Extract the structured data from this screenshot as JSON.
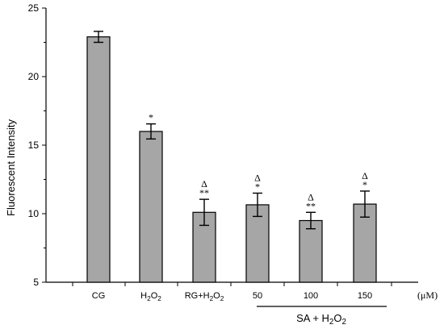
{
  "chart_data": {
    "type": "bar",
    "ylabel": "Fluorescent Intensity",
    "ylim": [
      5,
      25
    ],
    "yticks": [
      5,
      10,
      15,
      20,
      25
    ],
    "grid": false,
    "bar_color": "#a6a6a6",
    "unit_label": "(μM)",
    "group_label": {
      "main": "SA + H",
      "sub": "2",
      "tail": "O",
      "sub2": "2"
    },
    "categories": [
      {
        "main": "CG",
        "sub": "",
        "tail": "",
        "sub2": ""
      },
      {
        "main": "H",
        "sub": "2",
        "tail": "O",
        "sub2": "2"
      },
      {
        "main": "RG+H",
        "sub": "2",
        "tail": "O",
        "sub2": "2"
      },
      {
        "main": "50",
        "sub": "",
        "tail": "",
        "sub2": ""
      },
      {
        "main": "100",
        "sub": "",
        "tail": "",
        "sub2": ""
      },
      {
        "main": "150",
        "sub": "",
        "tail": "",
        "sub2": ""
      }
    ],
    "values": [
      22.9,
      16.0,
      10.1,
      10.65,
      9.5,
      10.7
    ],
    "errors": [
      0.4,
      0.55,
      0.95,
      0.85,
      0.6,
      0.95
    ],
    "significance": [
      {
        "delta": "",
        "stars": ""
      },
      {
        "delta": "",
        "stars": "*"
      },
      {
        "delta": "Δ",
        "stars": "**"
      },
      {
        "delta": "Δ",
        "stars": "*"
      },
      {
        "delta": "Δ",
        "stars": "**"
      },
      {
        "delta": "Δ",
        "stars": "*"
      }
    ]
  }
}
